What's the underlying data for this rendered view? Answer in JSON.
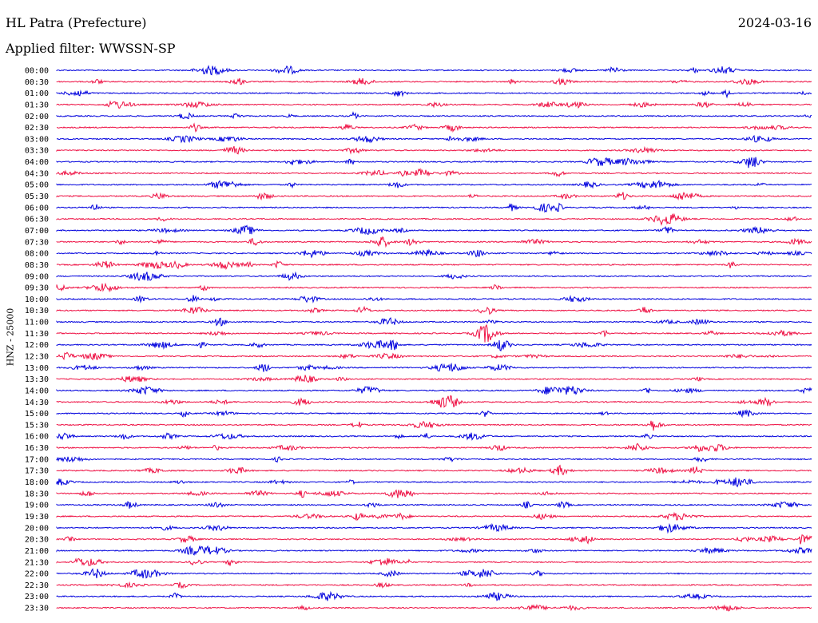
{
  "header": {
    "station": "HL Patra (Prefecture)",
    "date": "2024-03-16",
    "filter": "Applied filter: WWSSN-SP"
  },
  "chart_data": {
    "type": "line",
    "title": "HL Patra (Prefecture)",
    "ylabel": "HNZ - 25000",
    "row_labels": [
      "00:00",
      "00:30",
      "01:00",
      "01:30",
      "02:00",
      "02:30",
      "03:00",
      "03:30",
      "04:00",
      "04:30",
      "05:00",
      "05:30",
      "06:00",
      "06:30",
      "07:00",
      "07:30",
      "08:00",
      "08:30",
      "09:00",
      "09:30",
      "10:00",
      "10:30",
      "11:00",
      "11:30",
      "12:00",
      "12:30",
      "13:00",
      "13:30",
      "14:00",
      "14:30",
      "15:00",
      "15:30",
      "16:00",
      "16:30",
      "17:00",
      "17:30",
      "18:00",
      "18:30",
      "19:00",
      "19:30",
      "20:00",
      "20:30",
      "21:00",
      "21:30",
      "22:00",
      "22:30",
      "23:00",
      "23:30"
    ],
    "colors": [
      "#0000dd",
      "#ee1144"
    ],
    "grid": false
  }
}
